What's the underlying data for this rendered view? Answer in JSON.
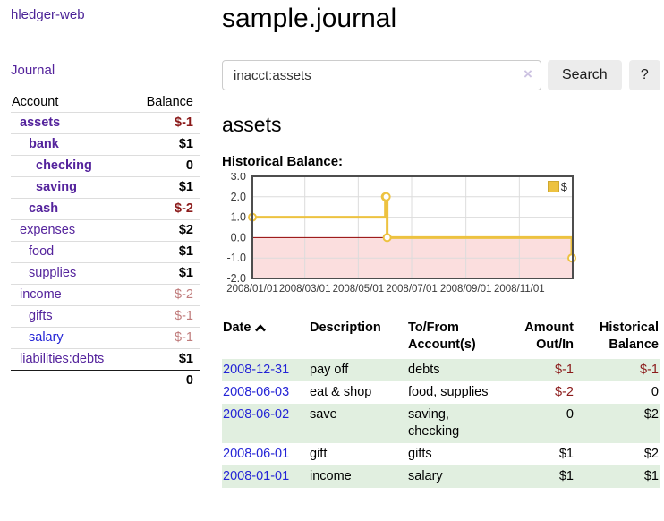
{
  "app": {
    "brand": "hledger-web",
    "nav_journal": "Journal"
  },
  "page": {
    "title": "sample.journal",
    "account_heading": "assets",
    "chart_heading": "Historical Balance:"
  },
  "search": {
    "value": "inacct:assets",
    "clear_icon": "×",
    "button": "Search",
    "help_button": "?"
  },
  "colors": {
    "link_purple": "#54239c",
    "link_blue": "#2424d6",
    "negative_strong": "#8b1a1a",
    "negative_soft": "#c07c7c",
    "row_stripe_green": "#e1efe0",
    "series_gold": "#edc240"
  },
  "sidebar_accounts": {
    "headers": {
      "account": "Account",
      "balance": "Balance"
    },
    "rows": [
      {
        "name": "assets",
        "depth": 1,
        "bold": true,
        "blue": false,
        "balance": "$-1",
        "balance_style": "neg-strong"
      },
      {
        "name": "bank",
        "depth": 2,
        "bold": true,
        "blue": false,
        "balance": "$1",
        "balance_style": "pos"
      },
      {
        "name": "checking",
        "depth": 3,
        "bold": true,
        "blue": false,
        "balance": "0",
        "balance_style": "pos"
      },
      {
        "name": "saving",
        "depth": 3,
        "bold": true,
        "blue": false,
        "balance": "$1",
        "balance_style": "pos"
      },
      {
        "name": "cash",
        "depth": 2,
        "bold": true,
        "blue": false,
        "balance": "$-2",
        "balance_style": "neg-strong"
      },
      {
        "name": "expenses",
        "depth": 1,
        "bold": false,
        "blue": false,
        "balance": "$2",
        "balance_style": "pos"
      },
      {
        "name": "food",
        "depth": 2,
        "bold": false,
        "blue": false,
        "balance": "$1",
        "balance_style": "pos"
      },
      {
        "name": "supplies",
        "depth": 2,
        "bold": false,
        "blue": false,
        "balance": "$1",
        "balance_style": "pos"
      },
      {
        "name": "income",
        "depth": 1,
        "bold": false,
        "blue": false,
        "balance": "$-2",
        "balance_style": "neg-soft"
      },
      {
        "name": "gifts",
        "depth": 2,
        "bold": false,
        "blue": false,
        "balance": "$-1",
        "balance_style": "neg-soft"
      },
      {
        "name": "salary",
        "depth": 2,
        "bold": false,
        "blue": true,
        "balance": "$-1",
        "balance_style": "neg-soft"
      },
      {
        "name": "liabilities:debts",
        "depth": 1,
        "bold": false,
        "blue": false,
        "balance": "$1",
        "balance_style": "pos"
      }
    ],
    "total": "0"
  },
  "chart_data": {
    "type": "line",
    "step": true,
    "title": "Historical Balance:",
    "series": [
      {
        "name": "$",
        "color": "#edc240",
        "points": [
          {
            "x": "2008-01-01",
            "y": 1
          },
          {
            "x": "2008-06-01",
            "y": 2
          },
          {
            "x": "2008-06-02",
            "y": 2
          },
          {
            "x": "2008-06-03",
            "y": 0
          },
          {
            "x": "2008-12-31",
            "y": -1
          }
        ]
      }
    ],
    "x_ticks": [
      "2008/01/01",
      "2008/03/01",
      "2008/05/01",
      "2008/07/01",
      "2008/09/01",
      "2008/11/01"
    ],
    "x_range": [
      "2008-01-01",
      "2009-01-01"
    ],
    "y_ticks": [
      3.0,
      2.0,
      1.0,
      0.0,
      -1.0,
      -2.0
    ],
    "ylim": [
      -2,
      3
    ],
    "grid": true,
    "legend_position": "top-right",
    "zero_line_color": "#900000",
    "negative_fill": "#fbdede",
    "grid_color": "#dcdcdc",
    "border_color": "#4d4d4d"
  },
  "register": {
    "headers": {
      "date": "Date",
      "description": "Description",
      "accounts": "To/From Account(s)",
      "amount": "Amount Out/In",
      "balance": "Historical Balance"
    },
    "rows": [
      {
        "date": "2008-12-31",
        "description": "pay off",
        "accounts": "debts",
        "amount": "$-1",
        "balance": "$-1"
      },
      {
        "date": "2008-06-03",
        "description": "eat & shop",
        "accounts": "food, supplies",
        "amount": "$-2",
        "balance": "0"
      },
      {
        "date": "2008-06-02",
        "description": "save",
        "accounts": "saving, checking",
        "amount": "0",
        "balance": "$2"
      },
      {
        "date": "2008-06-01",
        "description": "gift",
        "accounts": "gifts",
        "amount": "$1",
        "balance": "$2"
      },
      {
        "date": "2008-01-01",
        "description": "income",
        "accounts": "salary",
        "amount": "$1",
        "balance": "$1"
      }
    ]
  }
}
